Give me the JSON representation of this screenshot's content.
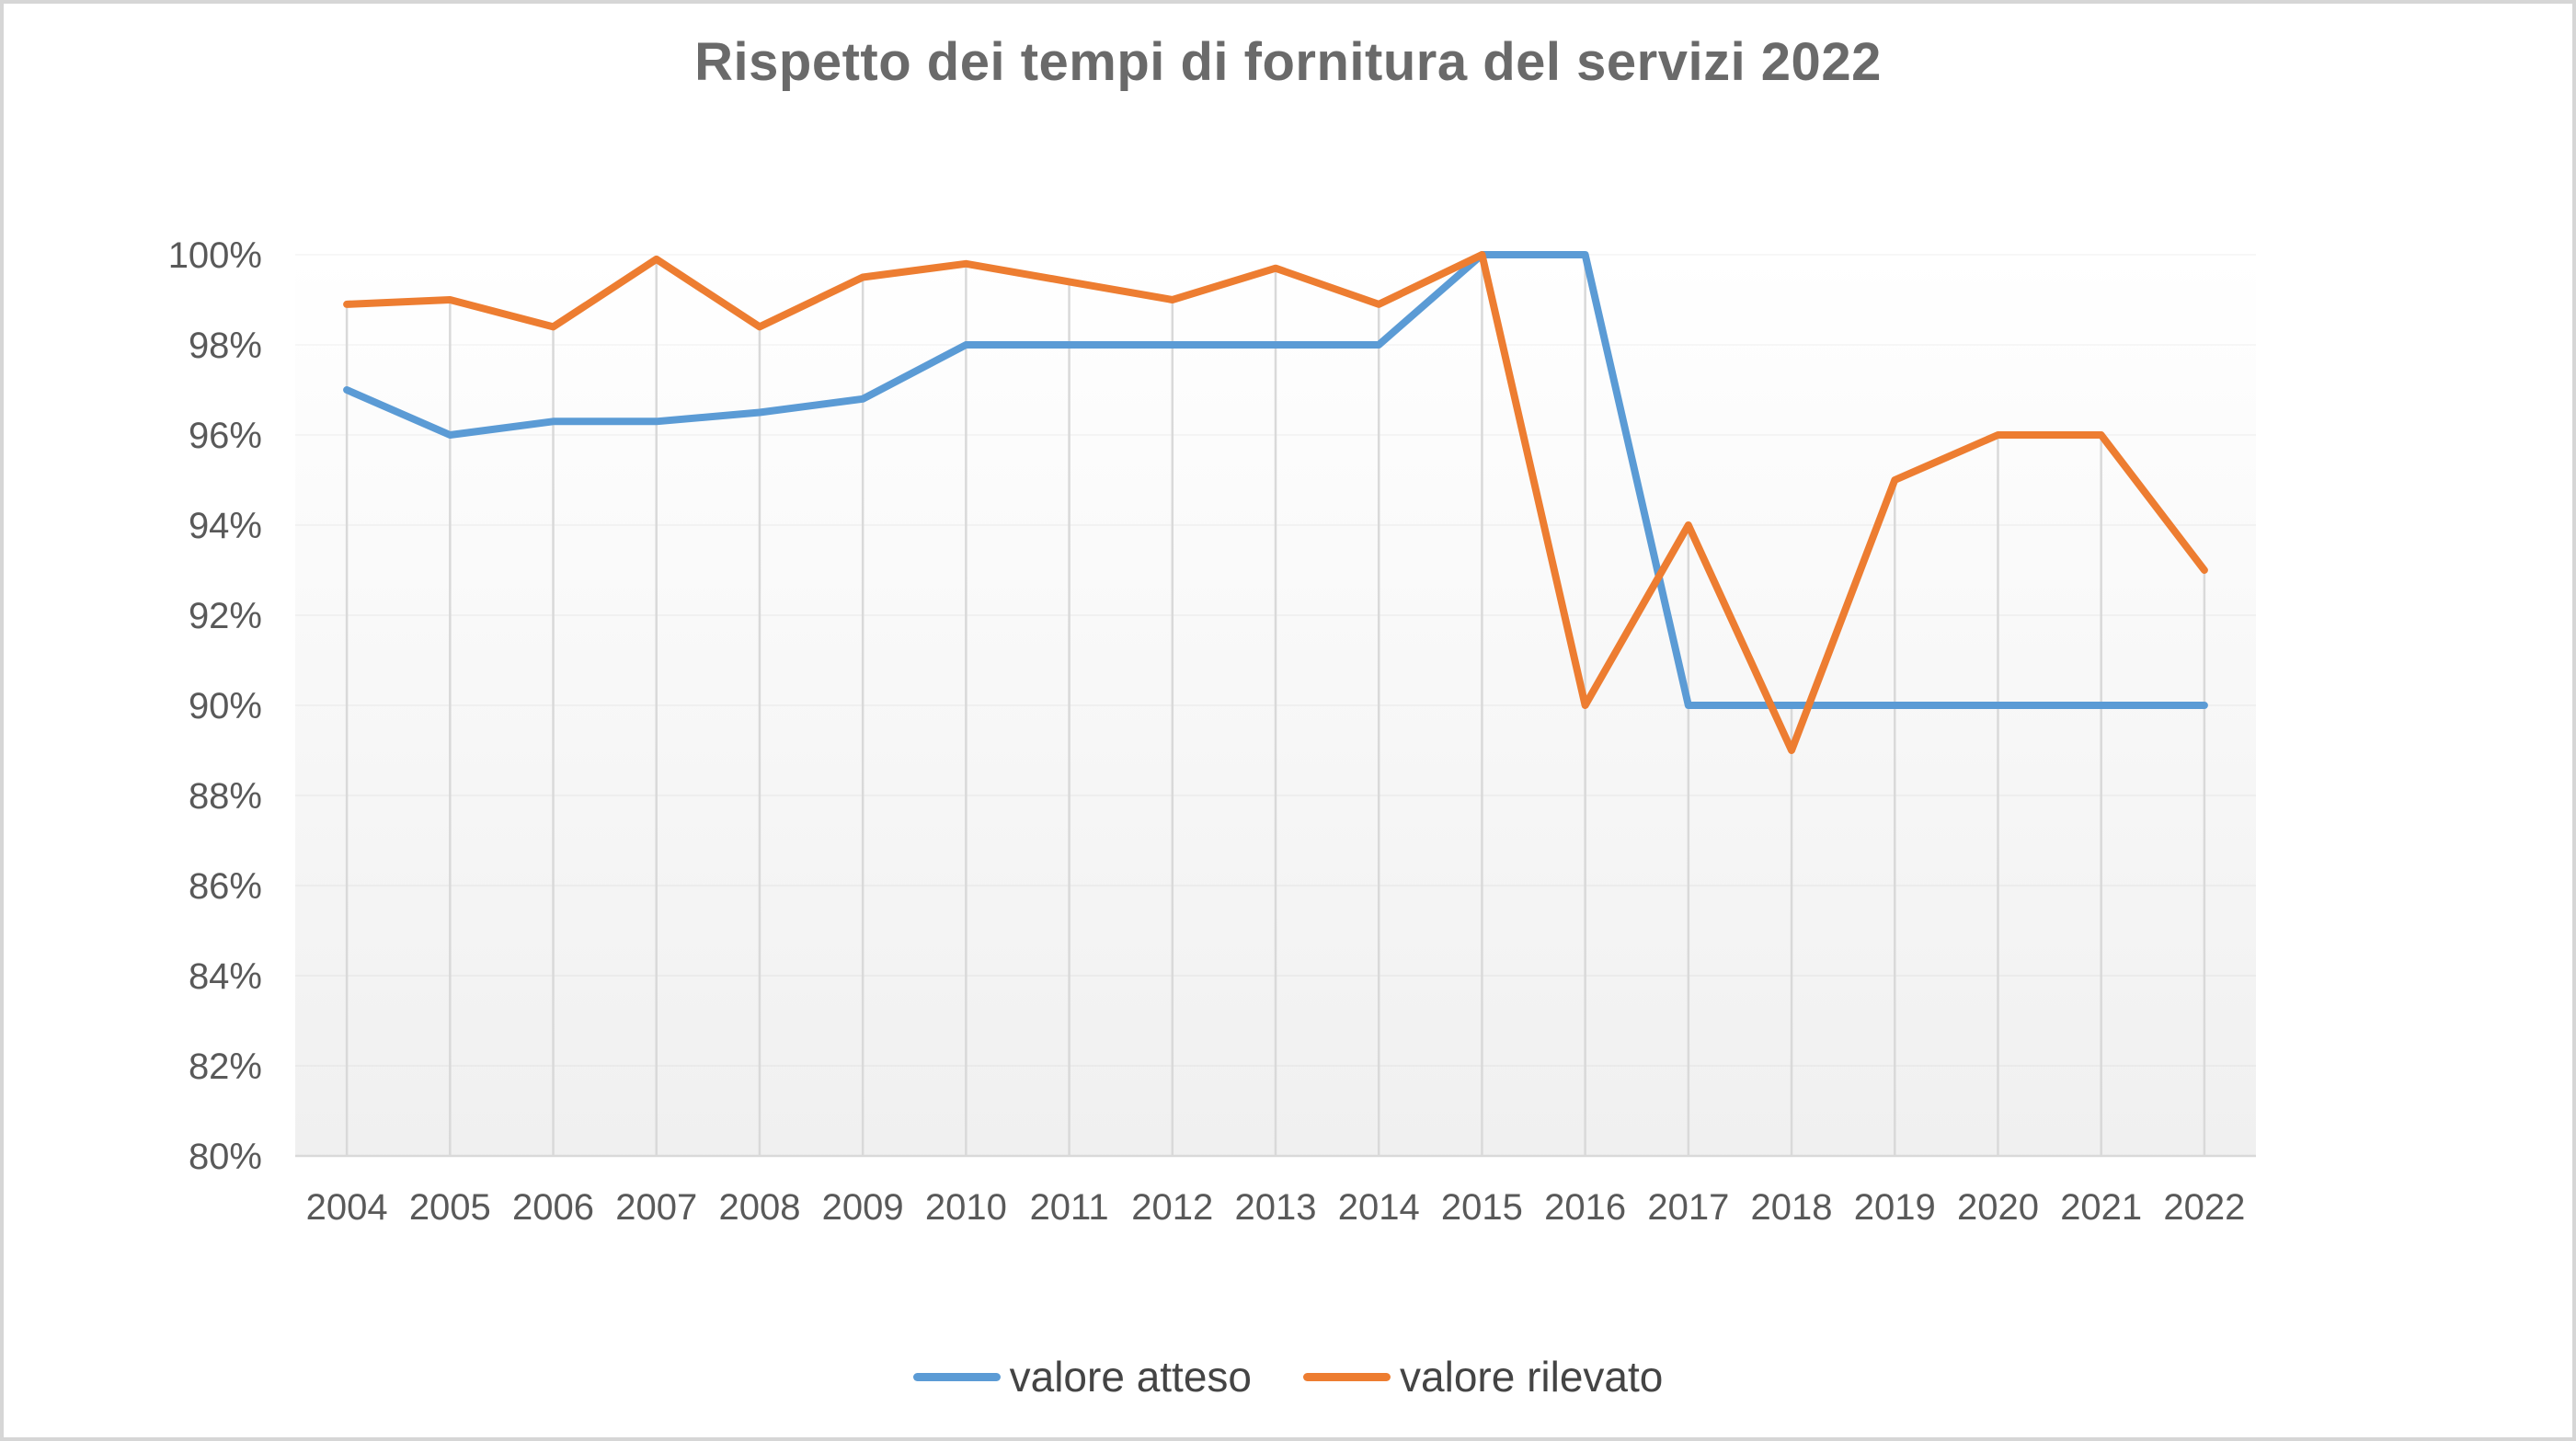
{
  "frame": {
    "border_color": "#d6d6d6",
    "background_color": "#ffffff"
  },
  "chart_data": {
    "type": "line",
    "title": "Rispetto dei tempi di fornitura del servizi 2022",
    "categories": [
      "2004",
      "2005",
      "2006",
      "2007",
      "2008",
      "2009",
      "2010",
      "2011",
      "2012",
      "2013",
      "2014",
      "2015",
      "2016",
      "2017",
      "2018",
      "2019",
      "2020",
      "2021",
      "2022"
    ],
    "series": [
      {
        "name": "valore atteso",
        "color": "#5B9BD5",
        "values": [
          97,
          96,
          96.3,
          96.3,
          96.5,
          96.8,
          98,
          98,
          98,
          98,
          98,
          100,
          100,
          90,
          90,
          90,
          90,
          90,
          90
        ]
      },
      {
        "name": "valore rilevato",
        "color": "#ED7D31",
        "values": [
          98.9,
          99,
          98.4,
          99.9,
          98.4,
          99.5,
          99.8,
          99.4,
          99,
          99.7,
          98.9,
          100,
          90,
          94,
          89,
          95,
          96,
          96,
          93
        ]
      }
    ],
    "x_axis": {
      "tick_labels": [
        "2004",
        "2005",
        "2006",
        "2007",
        "2008",
        "2009",
        "2010",
        "2011",
        "2012",
        "2013",
        "2014",
        "2015",
        "2016",
        "2017",
        "2018",
        "2019",
        "2020",
        "2021",
        "2022"
      ]
    },
    "y_axis": {
      "min": 80,
      "max": 100,
      "tick_step": 2,
      "tick_labels": [
        "80%",
        "82%",
        "84%",
        "86%",
        "88%",
        "90%",
        "92%",
        "94%",
        "96%",
        "98%",
        "100%"
      ]
    },
    "legend": {
      "position": "bottom",
      "items": [
        "valore atteso",
        "valore rilevato"
      ]
    },
    "grid": {
      "vertical_drop_lines": true,
      "horizontal_gridlines": "very-faint"
    },
    "style": {
      "gridline_color": "#d9d9d9",
      "axis_line_color": "#d9d9d9",
      "axis_text_color": "#595959",
      "title_color": "#6a6a6a",
      "legend_text_color": "#444444",
      "plot_gradient_top": "#ffffff",
      "plot_gradient_bottom": "#f0f0f0"
    }
  }
}
